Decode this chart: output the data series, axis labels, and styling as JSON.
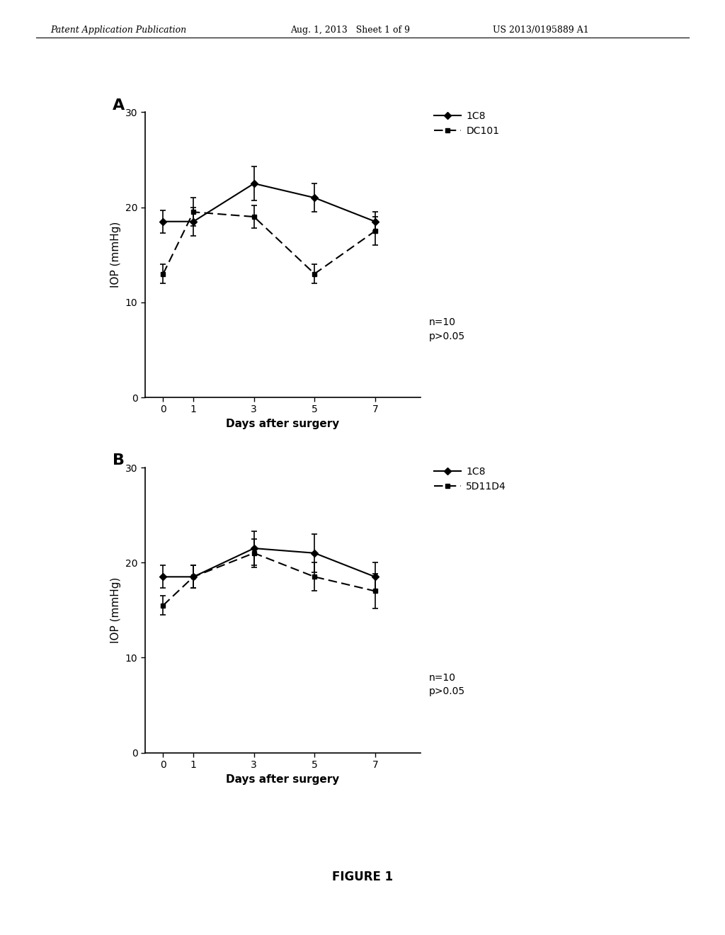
{
  "header_left": "Patent Application Publication",
  "header_center": "Aug. 1, 2013   Sheet 1 of 9",
  "header_right": "US 2013/0195889 A1",
  "figure_label": "FIGURE 1",
  "background_color": "#ffffff",
  "panel_A": {
    "label": "A",
    "x": [
      0,
      1,
      3,
      5,
      7
    ],
    "series1": {
      "label": "1C8",
      "y": [
        18.5,
        18.5,
        22.5,
        21.0,
        18.5
      ],
      "yerr": [
        1.2,
        1.5,
        1.8,
        1.5,
        1.0
      ]
    },
    "series2": {
      "label": "DC101",
      "y": [
        13.0,
        19.5,
        19.0,
        13.0,
        17.5
      ],
      "yerr": [
        1.0,
        1.5,
        1.2,
        1.0,
        1.5
      ]
    },
    "xlabel": "Days after surgery",
    "ylabel": "IOP (mmHg)",
    "ylim": [
      0,
      30
    ],
    "yticks": [
      0,
      10,
      20,
      30
    ],
    "annotation": "n=10\np>0.05"
  },
  "panel_B": {
    "label": "B",
    "x": [
      0,
      1,
      3,
      5,
      7
    ],
    "series1": {
      "label": "1C8",
      "y": [
        18.5,
        18.5,
        21.5,
        21.0,
        18.5
      ],
      "yerr": [
        1.2,
        1.2,
        1.8,
        2.0,
        1.5
      ]
    },
    "series2": {
      "label": "5D11D4",
      "y": [
        15.5,
        18.5,
        21.0,
        18.5,
        17.0
      ],
      "yerr": [
        1.0,
        1.2,
        1.5,
        1.5,
        1.8
      ]
    },
    "xlabel": "Days after surgery",
    "ylabel": "IOP (mmHg)",
    "ylim": [
      0,
      30
    ],
    "yticks": [
      0,
      10,
      20,
      30
    ],
    "annotation": "n=10\np>0.05"
  }
}
